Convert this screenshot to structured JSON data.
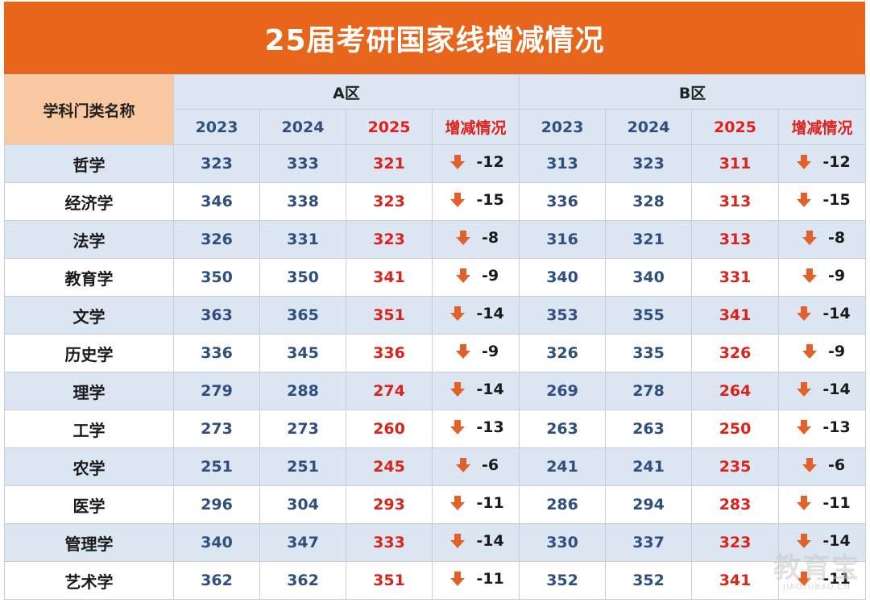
{
  "title": "25届考研国家线增减情况",
  "header": {
    "subject_label": "学科门类名称",
    "region_a": "A区",
    "region_b": "B区",
    "years": [
      "2023",
      "2024",
      "2025"
    ],
    "change_label": "增减情况"
  },
  "rows": [
    {
      "name": "哲学",
      "a": [
        "323",
        "333",
        "321"
      ],
      "a_change": "-12",
      "b": [
        "313",
        "323",
        "311"
      ],
      "b_change": "-12"
    },
    {
      "name": "经济学",
      "a": [
        "346",
        "338",
        "323"
      ],
      "a_change": "-15",
      "b": [
        "336",
        "328",
        "313"
      ],
      "b_change": "-15"
    },
    {
      "name": "法学",
      "a": [
        "326",
        "331",
        "323"
      ],
      "a_change": "-8",
      "b": [
        "316",
        "321",
        "313"
      ],
      "b_change": "-8"
    },
    {
      "name": "教育学",
      "a": [
        "350",
        "350",
        "341"
      ],
      "a_change": "-9",
      "b": [
        "340",
        "340",
        "331"
      ],
      "b_change": "-9"
    },
    {
      "name": "文学",
      "a": [
        "363",
        "365",
        "351"
      ],
      "a_change": "-14",
      "b": [
        "353",
        "355",
        "341"
      ],
      "b_change": "-14"
    },
    {
      "name": "历史学",
      "a": [
        "336",
        "345",
        "336"
      ],
      "a_change": "-9",
      "b": [
        "326",
        "335",
        "326"
      ],
      "b_change": "-9"
    },
    {
      "name": "理学",
      "a": [
        "279",
        "288",
        "274"
      ],
      "a_change": "-14",
      "b": [
        "269",
        "278",
        "264"
      ],
      "b_change": "-14"
    },
    {
      "name": "工学",
      "a": [
        "273",
        "273",
        "260"
      ],
      "a_change": "-13",
      "b": [
        "263",
        "263",
        "250"
      ],
      "b_change": "-13"
    },
    {
      "name": "农学",
      "a": [
        "251",
        "251",
        "245"
      ],
      "a_change": "-6",
      "b": [
        "241",
        "241",
        "235"
      ],
      "b_change": "-6"
    },
    {
      "name": "医学",
      "a": [
        "296",
        "304",
        "293"
      ],
      "a_change": "-11",
      "b": [
        "286",
        "294",
        "283"
      ],
      "b_change": "-11"
    },
    {
      "name": "管理学",
      "a": [
        "340",
        "347",
        "333"
      ],
      "a_change": "-14",
      "b": [
        "330",
        "337",
        "323"
      ],
      "b_change": "-14"
    },
    {
      "name": "艺术学",
      "a": [
        "362",
        "362",
        "351"
      ],
      "a_change": "-11",
      "b": [
        "352",
        "352",
        "341"
      ],
      "b_change": "-11"
    }
  ],
  "icons": {
    "change_icon": "down-arrow-icon"
  },
  "colors": {
    "title_bg": "#e8661c",
    "subject_header_bg": "#f8c9a0",
    "header_bg": "#dce5f2",
    "alt_row_bg": "#dce5f2",
    "old_year_text": "#2f4f7f",
    "current_year_text": "#d9241c",
    "arrow": "#e0622a"
  },
  "watermark": {
    "main": "教育宝",
    "sub": "JIAOYUBAO.CN"
  }
}
